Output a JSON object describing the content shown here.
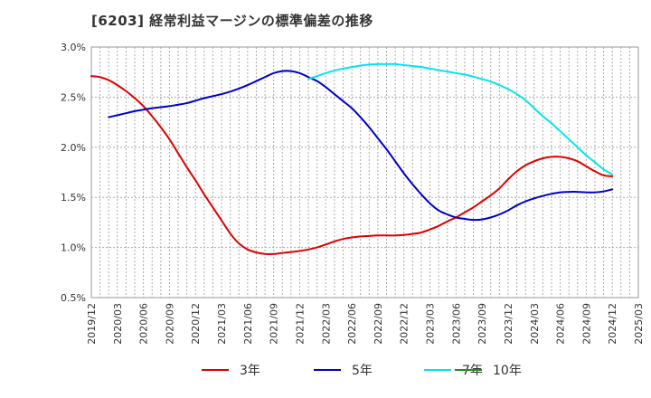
{
  "chart_data": {
    "type": "line",
    "title": "[6203]  経常利益マージンの標準偏差の推移",
    "xlabel": "",
    "ylabel": "",
    "ylim": [
      0.5,
      3.0
    ],
    "yticks": [
      "0.5%",
      "1.0%",
      "1.5%",
      "2.0%",
      "2.5%",
      "3.0%"
    ],
    "yticks_values": [
      0.5,
      1.0,
      1.5,
      2.0,
      2.5,
      3.0
    ],
    "x_categories": [
      "2019/12",
      "2020/03",
      "2020/06",
      "2020/09",
      "2020/12",
      "2021/03",
      "2021/06",
      "2021/09",
      "2021/12",
      "2022/03",
      "2022/06",
      "2022/09",
      "2022/12",
      "2023/03",
      "2023/06",
      "2023/09",
      "2023/12",
      "2024/03",
      "2024/06",
      "2024/09",
      "2024/12",
      "2025/03"
    ],
    "grid": true,
    "legend_position": "bottom",
    "series": [
      {
        "name": "3年",
        "color": "#e00000",
        "points": [
          [
            "2019/12",
            2.71
          ],
          [
            "2020/01",
            2.7
          ],
          [
            "2020/02",
            2.67
          ],
          [
            "2020/03",
            2.62
          ],
          [
            "2020/04",
            2.56
          ],
          [
            "2020/05",
            2.49
          ],
          [
            "2020/06",
            2.41
          ],
          [
            "2020/07",
            2.31
          ],
          [
            "2020/08",
            2.2
          ],
          [
            "2020/09",
            2.08
          ],
          [
            "2020/10",
            1.94
          ],
          [
            "2020/11",
            1.8
          ],
          [
            "2020/12",
            1.67
          ],
          [
            "2021/01",
            1.53
          ],
          [
            "2021/02",
            1.4
          ],
          [
            "2021/03",
            1.27
          ],
          [
            "2021/04",
            1.14
          ],
          [
            "2021/05",
            1.04
          ],
          [
            "2021/06",
            0.98
          ],
          [
            "2021/07",
            0.95
          ],
          [
            "2021/08",
            0.935
          ],
          [
            "2021/09",
            0.935
          ],
          [
            "2021/10",
            0.945
          ],
          [
            "2021/11",
            0.955
          ],
          [
            "2021/12",
            0.965
          ],
          [
            "2022/01",
            0.98
          ],
          [
            "2022/02",
            1.0
          ],
          [
            "2022/03",
            1.03
          ],
          [
            "2022/04",
            1.06
          ],
          [
            "2022/05",
            1.085
          ],
          [
            "2022/06",
            1.1
          ],
          [
            "2022/07",
            1.11
          ],
          [
            "2022/08",
            1.115
          ],
          [
            "2022/09",
            1.12
          ],
          [
            "2022/10",
            1.12
          ],
          [
            "2022/11",
            1.12
          ],
          [
            "2022/12",
            1.125
          ],
          [
            "2023/01",
            1.135
          ],
          [
            "2023/02",
            1.15
          ],
          [
            "2023/03",
            1.18
          ],
          [
            "2023/04",
            1.215
          ],
          [
            "2023/05",
            1.26
          ],
          [
            "2023/06",
            1.3
          ],
          [
            "2023/07",
            1.35
          ],
          [
            "2023/08",
            1.4
          ],
          [
            "2023/09",
            1.46
          ],
          [
            "2023/10",
            1.52
          ],
          [
            "2023/11",
            1.59
          ],
          [
            "2023/12",
            1.68
          ],
          [
            "2024/01",
            1.76
          ],
          [
            "2024/02",
            1.82
          ],
          [
            "2024/03",
            1.86
          ],
          [
            "2024/04",
            1.89
          ],
          [
            "2024/05",
            1.905
          ],
          [
            "2024/06",
            1.905
          ],
          [
            "2024/07",
            1.89
          ],
          [
            "2024/08",
            1.86
          ],
          [
            "2024/09",
            1.81
          ],
          [
            "2024/10",
            1.76
          ],
          [
            "2024/11",
            1.72
          ],
          [
            "2024/12",
            1.71
          ]
        ]
      },
      {
        "name": "5年",
        "color": "#0000cc",
        "points": [
          [
            "2020/02",
            2.3
          ],
          [
            "2020/03",
            2.32
          ],
          [
            "2020/04",
            2.34
          ],
          [
            "2020/05",
            2.36
          ],
          [
            "2020/06",
            2.375
          ],
          [
            "2020/07",
            2.39
          ],
          [
            "2020/08",
            2.4
          ],
          [
            "2020/09",
            2.41
          ],
          [
            "2020/10",
            2.425
          ],
          [
            "2020/11",
            2.44
          ],
          [
            "2020/12",
            2.465
          ],
          [
            "2021/01",
            2.49
          ],
          [
            "2021/02",
            2.51
          ],
          [
            "2021/03",
            2.53
          ],
          [
            "2021/04",
            2.555
          ],
          [
            "2021/05",
            2.585
          ],
          [
            "2021/06",
            2.62
          ],
          [
            "2021/07",
            2.66
          ],
          [
            "2021/08",
            2.7
          ],
          [
            "2021/09",
            2.74
          ],
          [
            "2021/10",
            2.76
          ],
          [
            "2021/11",
            2.76
          ],
          [
            "2021/12",
            2.74
          ],
          [
            "2022/01",
            2.7
          ],
          [
            "2022/02",
            2.66
          ],
          [
            "2022/03",
            2.6
          ],
          [
            "2022/04",
            2.53
          ],
          [
            "2022/05",
            2.46
          ],
          [
            "2022/06",
            2.39
          ],
          [
            "2022/07",
            2.3
          ],
          [
            "2022/08",
            2.2
          ],
          [
            "2022/09",
            2.09
          ],
          [
            "2022/10",
            1.98
          ],
          [
            "2022/11",
            1.86
          ],
          [
            "2022/12",
            1.74
          ],
          [
            "2023/01",
            1.63
          ],
          [
            "2023/02",
            1.53
          ],
          [
            "2023/03",
            1.44
          ],
          [
            "2023/04",
            1.37
          ],
          [
            "2023/05",
            1.33
          ],
          [
            "2023/06",
            1.3
          ],
          [
            "2023/07",
            1.285
          ],
          [
            "2023/08",
            1.275
          ],
          [
            "2023/09",
            1.28
          ],
          [
            "2023/10",
            1.3
          ],
          [
            "2023/11",
            1.33
          ],
          [
            "2023/12",
            1.37
          ],
          [
            "2024/01",
            1.42
          ],
          [
            "2024/02",
            1.46
          ],
          [
            "2024/03",
            1.49
          ],
          [
            "2024/04",
            1.515
          ],
          [
            "2024/05",
            1.535
          ],
          [
            "2024/06",
            1.55
          ],
          [
            "2024/07",
            1.555
          ],
          [
            "2024/08",
            1.555
          ],
          [
            "2024/09",
            1.55
          ],
          [
            "2024/10",
            1.55
          ],
          [
            "2024/11",
            1.56
          ],
          [
            "2024/12",
            1.58
          ]
        ]
      },
      {
        "name": "7年",
        "color": "#00e5ee",
        "points": [
          [
            "2022/01",
            2.68
          ],
          [
            "2022/02",
            2.71
          ],
          [
            "2022/03",
            2.74
          ],
          [
            "2022/04",
            2.765
          ],
          [
            "2022/05",
            2.785
          ],
          [
            "2022/06",
            2.8
          ],
          [
            "2022/07",
            2.815
          ],
          [
            "2022/08",
            2.825
          ],
          [
            "2022/09",
            2.83
          ],
          [
            "2022/10",
            2.83
          ],
          [
            "2022/11",
            2.83
          ],
          [
            "2022/12",
            2.82
          ],
          [
            "2023/01",
            2.81
          ],
          [
            "2023/02",
            2.8
          ],
          [
            "2023/03",
            2.785
          ],
          [
            "2023/04",
            2.77
          ],
          [
            "2023/05",
            2.755
          ],
          [
            "2023/06",
            2.74
          ],
          [
            "2023/07",
            2.725
          ],
          [
            "2023/08",
            2.705
          ],
          [
            "2023/09",
            2.68
          ],
          [
            "2023/10",
            2.655
          ],
          [
            "2023/11",
            2.62
          ],
          [
            "2023/12",
            2.58
          ],
          [
            "2024/01",
            2.53
          ],
          [
            "2024/02",
            2.47
          ],
          [
            "2024/03",
            2.39
          ],
          [
            "2024/04",
            2.31
          ],
          [
            "2024/05",
            2.24
          ],
          [
            "2024/06",
            2.16
          ],
          [
            "2024/07",
            2.08
          ],
          [
            "2024/08",
            2.0
          ],
          [
            "2024/09",
            1.92
          ],
          [
            "2024/10",
            1.85
          ],
          [
            "2024/11",
            1.78
          ],
          [
            "2024/12",
            1.73
          ]
        ]
      },
      {
        "name": "10年",
        "color": "#228b22",
        "points": []
      }
    ]
  }
}
